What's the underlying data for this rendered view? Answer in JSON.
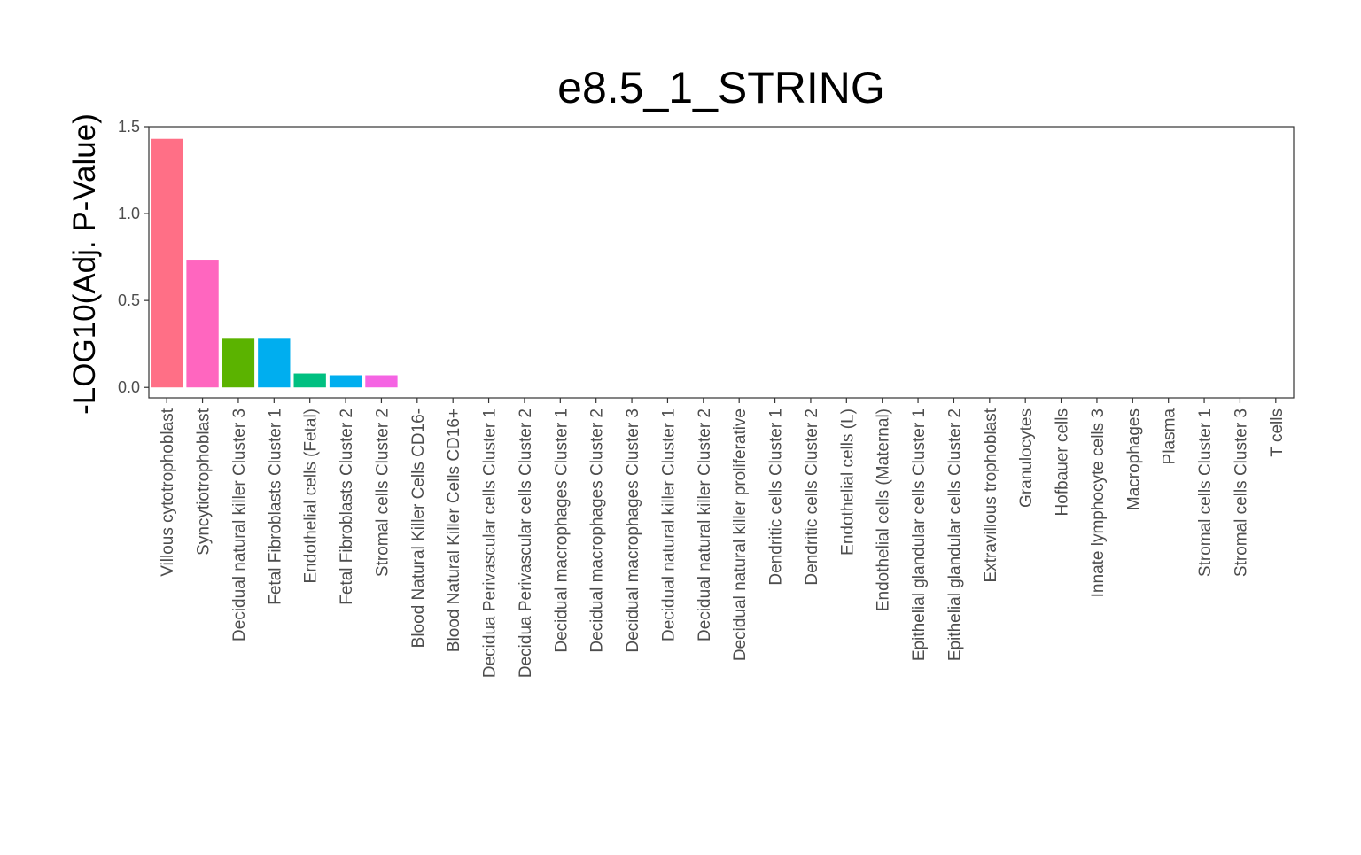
{
  "chart_data": {
    "type": "bar",
    "title": "e8.5_1_STRING",
    "xlabel": "",
    "ylabel": "-LOG10(Adj. P-Value)",
    "ylim": [
      -0.06,
      1.5
    ],
    "yticks": [
      0.0,
      0.5,
      1.0,
      1.5
    ],
    "ytick_labels": [
      "0.0",
      "0.5",
      "1.0",
      "1.5"
    ],
    "grid": false,
    "legend": "none",
    "categories": [
      "Villous cytotrophoblast",
      "Syncytiotrophoblast",
      "Decidual natural killer Cluster 3",
      "Fetal Fibroblasts Cluster 1",
      "Endothelial cells (Fetal)",
      "Fetal Fibroblasts Cluster 2",
      "Stromal cells Cluster 2",
      "Blood Natural Killer Cells CD16-",
      "Blood Natural Killer Cells CD16+",
      "Decidua Perivascular cells Cluster 1",
      "Decidua Perivascular cells Cluster 2",
      "Decidual macrophages Cluster 1",
      "Decidual macrophages Cluster 2",
      "Decidual macrophages Cluster 3",
      "Decidual natural killer Cluster 1",
      "Decidual natural killer Cluster 2",
      "Decidual natural killer proliferative",
      "Dendritic cells Cluster 1",
      "Dendritic cells Cluster 2",
      "Endothelial cells (L)",
      "Endothelial cells (Maternal)",
      "Epithelial glandular cells Cluster 1",
      "Epithelial glandular cells Cluster 2",
      "Extravillous trophoblast",
      "Granulocytes",
      "Hofbauer cells",
      "Innate lymphocyte cells 3",
      "Macrophages",
      "Plasma",
      "Stromal cells Cluster 1",
      "Stromal cells Cluster 3",
      "T cells"
    ],
    "values": [
      1.43,
      0.73,
      0.28,
      0.28,
      0.08,
      0.07,
      0.07,
      0,
      0,
      0,
      0,
      0,
      0,
      0,
      0,
      0,
      0,
      0,
      0,
      0,
      0,
      0,
      0,
      0,
      0,
      0,
      0,
      0,
      0,
      0,
      0,
      0
    ],
    "colors": [
      "#F8766D",
      "#FF61C3",
      "#7CAE00",
      "#00A9FF",
      "#00BE67",
      "#00A9FF",
      "#F564E3",
      "#999999",
      "#999999",
      "#999999",
      "#999999",
      "#999999",
      "#999999",
      "#999999",
      "#999999",
      "#999999",
      "#999999",
      "#999999",
      "#999999",
      "#999999",
      "#999999",
      "#999999",
      "#999999",
      "#999999",
      "#999999",
      "#999999",
      "#999999",
      "#999999",
      "#999999",
      "#999999",
      "#999999",
      "#999999"
    ],
    "bar_colors_visible": [
      "#FF6F86",
      "#FF66BF",
      "#5BB300",
      "#00AEEF",
      "#00C081",
      "#00AEEF",
      "#F564E3"
    ]
  }
}
